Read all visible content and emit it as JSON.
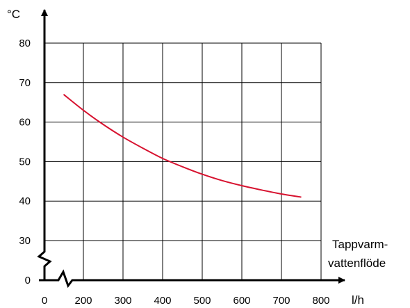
{
  "chart_data": {
    "type": "line",
    "title": "",
    "ylabel": "°C",
    "xunit": "l/h",
    "xlabel_lines": [
      "Tappvarm-",
      "vattenflöde"
    ],
    "x_ticks": [
      {
        "value": 0,
        "label": "0"
      },
      {
        "value": 200,
        "label": "200"
      },
      {
        "value": 300,
        "label": "300"
      },
      {
        "value": 400,
        "label": "400"
      },
      {
        "value": 500,
        "label": "500"
      },
      {
        "value": 600,
        "label": "600"
      },
      {
        "value": 700,
        "label": "700"
      },
      {
        "value": 800,
        "label": "800"
      }
    ],
    "y_ticks": [
      {
        "value": 0,
        "label": "0"
      },
      {
        "value": 30,
        "label": "30"
      },
      {
        "value": 40,
        "label": "40"
      },
      {
        "value": 50,
        "label": "50"
      },
      {
        "value": 60,
        "label": "60"
      },
      {
        "value": 70,
        "label": "70"
      },
      {
        "value": 80,
        "label": "80"
      }
    ],
    "xlim": [
      0,
      800
    ],
    "ylim": [
      0,
      80
    ],
    "axis_breaks": [
      "x: 0–200",
      "y: 0–30"
    ],
    "grid": true,
    "series": [
      {
        "color": "#d7122f",
        "x": [
          150,
          200,
          250,
          300,
          350,
          400,
          450,
          500,
          550,
          600,
          650,
          700,
          750
        ],
        "y": [
          67,
          63,
          59.4,
          56.2,
          53.4,
          50.8,
          48.7,
          46.8,
          45.2,
          43.9,
          42.8,
          41.8,
          41
        ]
      }
    ]
  }
}
